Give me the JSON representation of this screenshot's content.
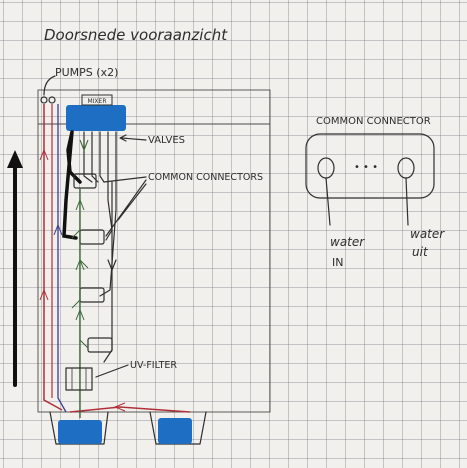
{
  "title": "Doorsnede vooraanzicht",
  "labels": {
    "pumps": "PUMPS (x2)",
    "mixer": "MIXER",
    "valves": "VALVES",
    "common_connectors": "COMMON CONNECTORS",
    "uv_filter": "UV-FILTER",
    "common_connector": "COMMON CONNECTOR",
    "connector_dots": "• • •",
    "water_in": [
      "water",
      "IN"
    ],
    "water_uit": [
      "water",
      "uit"
    ]
  },
  "colors": {
    "ink": "#2f2f2f",
    "pump_blue": "#1e6fc4",
    "pipe_red": "#b0303a",
    "pipe_blue": "#3a3d8f",
    "pipe_green": "#3e6b3a"
  }
}
